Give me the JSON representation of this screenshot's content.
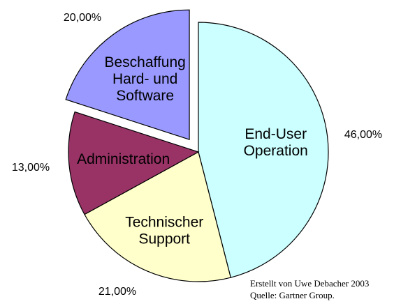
{
  "chart_data": {
    "type": "pie",
    "slices": [
      {
        "name": "End-User Operation",
        "label_lines": [
          "End-User",
          "Operation"
        ],
        "value": 46.0,
        "value_label": "46,00%",
        "color": "#ccffff",
        "exploded": false
      },
      {
        "name": "Technischer Support",
        "label_lines": [
          "Technischer",
          "Support"
        ],
        "value": 21.0,
        "value_label": "21,00%",
        "color": "#ffffcc",
        "exploded": false
      },
      {
        "name": "Administration",
        "label_lines": [
          "Administration"
        ],
        "value": 13.0,
        "value_label": "13,00%",
        "color": "#993366",
        "exploded": false
      },
      {
        "name": "Beschaffung Hard- und Software",
        "label_lines": [
          "Beschaffung",
          "Hard- und",
          "Software"
        ],
        "value": 20.0,
        "value_label": "20,00%",
        "color": "#9999ff",
        "exploded": true
      }
    ],
    "start_angle": "top (12 o'clock)",
    "direction": "clockwise",
    "outline_color": "#000000",
    "legend": "none"
  },
  "credits": {
    "author": "Erstellt von Uwe Debacher 2003",
    "source": "Quelle: Gartner Group."
  }
}
